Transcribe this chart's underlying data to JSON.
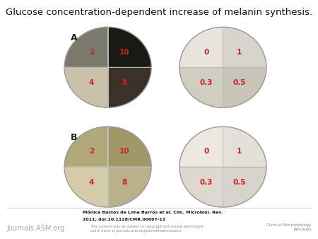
{
  "title": "Glucose concentration-dependent increase of melanin synthesis.",
  "title_fontsize": 9.5,
  "title_bold": false,
  "background_color": "#ffffff",
  "footer_author": "Mônica Bastos de Lima Barros et al. Clin. Microbiol. Rev.",
  "footer_doi": "2011; doi:10.1128/CMR.00007-11",
  "footer_journal_left": "Journals.ASM.org",
  "footer_copyright": "This content may be subject to copyright and license restrictions.\nLearn more at journals.asm.org/content/permissions",
  "footer_journal_right": "Clinical Microbiology\nReviews",
  "plate_left_top_labels": [
    "2",
    "10",
    "4",
    "8"
  ],
  "plate_left_bottom_labels": [
    "2",
    "10",
    "4",
    "8"
  ],
  "plate_right_top_labels": [
    "0",
    "1",
    "0.3",
    "0.5"
  ],
  "plate_right_bottom_labels": [
    "0",
    "1",
    "0.3",
    "0.5"
  ],
  "label_A": "A",
  "label_B": "B",
  "label_color": "#cc2222",
  "panel_label_color": "#222222"
}
